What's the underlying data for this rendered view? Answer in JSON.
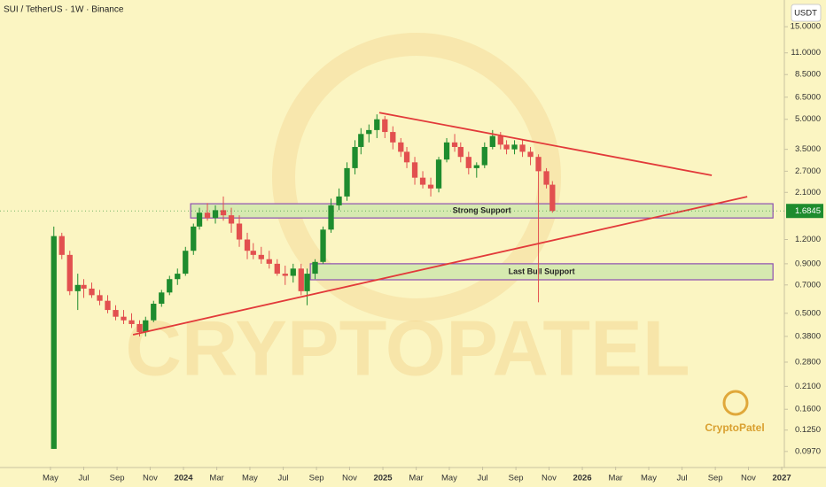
{
  "chart_data": {
    "type": "candlestick",
    "title": "SUI / TetherUS · 1W · Binance",
    "y_unit": "USDT",
    "log_scale": true,
    "grid": false,
    "up_color": "#1e8c2e",
    "down_color": "#e2504f",
    "xlim": [
      2023.08,
      2027.013
    ],
    "ylim": [
      0.081,
      20.6
    ],
    "xticks": [
      {
        "value": 2023.333,
        "label": "May"
      },
      {
        "value": 2023.5,
        "label": "Jul"
      },
      {
        "value": 2023.667,
        "label": "Sep"
      },
      {
        "value": 2023.833,
        "label": "Nov"
      },
      2024,
      {
        "value": 2024.167,
        "label": "Mar"
      },
      {
        "value": 2024.333,
        "label": "May"
      },
      {
        "value": 2024.5,
        "label": "Jul"
      },
      {
        "value": 2024.667,
        "label": "Sep"
      },
      {
        "value": 2024.833,
        "label": "Nov"
      },
      2025,
      {
        "value": 2025.167,
        "label": "Mar"
      },
      {
        "value": 2025.333,
        "label": "May"
      },
      {
        "value": 2025.5,
        "label": "Jul"
      },
      {
        "value": 2025.667,
        "label": "Sep"
      },
      {
        "value": 2025.833,
        "label": "Nov"
      },
      2026,
      {
        "value": 2026.167,
        "label": "Mar"
      },
      {
        "value": 2026.333,
        "label": "May"
      },
      {
        "value": 2026.5,
        "label": "Jul"
      },
      {
        "value": 2026.667,
        "label": "Sep"
      },
      {
        "value": 2026.833,
        "label": "Nov"
      },
      2027
    ],
    "yticks": [
      {
        "value": 15,
        "label": "15.0000"
      },
      {
        "value": 11,
        "label": "11.0000"
      },
      {
        "value": 8.5,
        "label": "8.5000"
      },
      {
        "value": 6.5,
        "label": "6.5000"
      },
      {
        "value": 5,
        "label": "5.0000"
      },
      {
        "value": 3.5,
        "label": "3.5000"
      },
      {
        "value": 2.7,
        "label": "2.7000"
      },
      {
        "value": 2.1,
        "label": "2.1000"
      },
      {
        "value": 1.2,
        "label": "1.2000"
      },
      {
        "value": 0.9,
        "label": "0.9000"
      },
      {
        "value": 0.7,
        "label": "0.7000"
      },
      {
        "value": 0.5,
        "label": "0.5000"
      },
      {
        "value": 0.38,
        "label": "0.3800"
      },
      {
        "value": 0.28,
        "label": "0.2800"
      },
      {
        "value": 0.21,
        "label": "0.2100"
      },
      {
        "value": 0.16,
        "label": "0.1600"
      },
      {
        "value": 0.125,
        "label": "0.1250"
      },
      {
        "value": 0.097,
        "label": "0.0970"
      }
    ],
    "current_price": 1.6845,
    "current_price_color": "#1e8c2e",
    "x": [
      2023.35,
      2023.39,
      2023.43,
      2023.47,
      2023.5,
      2023.54,
      2023.58,
      2023.62,
      2023.66,
      2023.7,
      2023.74,
      2023.78,
      2023.81,
      2023.85,
      2023.89,
      2023.93,
      2023.97,
      2024.01,
      2024.05,
      2024.08,
      2024.12,
      2024.16,
      2024.2,
      2024.24,
      2024.28,
      2024.32,
      2024.35,
      2024.39,
      2024.43,
      2024.47,
      2024.51,
      2024.55,
      2024.59,
      2024.62,
      2024.66,
      2024.7,
      2024.74,
      2024.78,
      2024.82,
      2024.86,
      2024.89,
      2024.93,
      2024.97,
      2025.01,
      2025.05,
      2025.09,
      2025.12,
      2025.16,
      2025.2,
      2025.24,
      2025.28,
      2025.32,
      2025.36,
      2025.39,
      2025.43,
      2025.47,
      2025.51,
      2025.55,
      2025.59,
      2025.62,
      2025.66,
      2025.7,
      2025.74,
      2025.78,
      2025.82,
      2025.85
    ],
    "open": [
      0.1,
      1.25,
      1.0,
      0.65,
      0.7,
      0.67,
      0.62,
      0.58,
      0.52,
      0.48,
      0.46,
      0.44,
      0.4,
      0.46,
      0.56,
      0.64,
      0.75,
      0.8,
      1.05,
      1.4,
      1.65,
      1.55,
      1.7,
      1.6,
      1.45,
      1.2,
      1.05,
      1.0,
      0.95,
      0.9,
      0.8,
      0.78,
      0.85,
      0.65,
      0.8,
      0.92,
      1.35,
      1.8,
      2.0,
      2.8,
      3.6,
      4.2,
      4.4,
      5.0,
      4.3,
      3.8,
      3.4,
      3.0,
      2.5,
      2.3,
      2.2,
      3.1,
      3.8,
      3.6,
      3.2,
      2.8,
      2.9,
      3.6,
      4.1,
      3.7,
      3.5,
      3.7,
      3.4,
      3.2,
      2.7,
      2.3
    ],
    "high": [
      1.4,
      1.3,
      1.05,
      0.8,
      0.75,
      0.72,
      0.66,
      0.62,
      0.55,
      0.52,
      0.5,
      0.46,
      0.48,
      0.58,
      0.66,
      0.78,
      0.85,
      1.1,
      1.45,
      1.75,
      1.85,
      1.8,
      2.0,
      1.75,
      1.6,
      1.3,
      1.15,
      1.1,
      1.05,
      0.95,
      0.88,
      0.9,
      0.9,
      0.85,
      0.95,
      1.4,
      1.95,
      2.2,
      3.0,
      3.9,
      4.5,
      4.7,
      5.3,
      5.2,
      4.6,
      4.0,
      3.6,
      3.2,
      2.7,
      2.5,
      3.2,
      4.0,
      4.2,
      3.8,
      3.4,
      3.0,
      3.8,
      4.4,
      4.3,
      3.9,
      3.9,
      3.9,
      3.6,
      3.3,
      2.8,
      2.4
    ],
    "low": [
      0.1,
      0.95,
      0.62,
      0.52,
      0.6,
      0.6,
      0.55,
      0.5,
      0.46,
      0.44,
      0.42,
      0.38,
      0.38,
      0.45,
      0.54,
      0.62,
      0.7,
      0.78,
      1.0,
      1.35,
      1.5,
      1.45,
      1.5,
      1.3,
      1.1,
      0.95,
      0.95,
      0.9,
      0.85,
      0.78,
      0.7,
      0.72,
      0.62,
      0.55,
      0.75,
      0.9,
      1.3,
      1.7,
      1.9,
      2.6,
      3.3,
      3.8,
      4.0,
      4.0,
      3.5,
      3.2,
      2.8,
      2.3,
      2.2,
      2.0,
      2.1,
      3.0,
      3.4,
      3.0,
      2.6,
      2.5,
      2.8,
      3.5,
      3.5,
      3.3,
      3.3,
      3.2,
      2.9,
      0.57,
      2.2,
      1.65
    ],
    "close": [
      1.25,
      1.0,
      0.65,
      0.7,
      0.67,
      0.62,
      0.58,
      0.52,
      0.48,
      0.46,
      0.44,
      0.4,
      0.46,
      0.56,
      0.64,
      0.75,
      0.8,
      1.05,
      1.4,
      1.65,
      1.55,
      1.7,
      1.6,
      1.45,
      1.2,
      1.05,
      1.0,
      0.95,
      0.9,
      0.8,
      0.78,
      0.85,
      0.65,
      0.8,
      0.92,
      1.35,
      1.8,
      2.0,
      2.8,
      3.6,
      4.2,
      4.4,
      5.0,
      4.3,
      3.8,
      3.4,
      3.0,
      2.5,
      2.3,
      2.2,
      3.1,
      3.8,
      3.6,
      3.2,
      2.8,
      2.9,
      3.6,
      4.1,
      3.7,
      3.5,
      3.7,
      3.4,
      3.2,
      2.7,
      2.3,
      1.6845
    ],
    "zones": [
      {
        "label": "Strong Support",
        "xlim": [
          2024.036,
          2026.956
        ],
        "ylim": [
          1.55,
          1.835
        ],
        "color": "#d6eab0",
        "border": "#8e4fb0"
      },
      {
        "label": "Last Bull Support",
        "xlim": [
          2024.636,
          2026.956
        ],
        "ylim": [
          0.744,
          0.9
        ],
        "color": "#d6eab0",
        "border": "#8e4fb0"
      }
    ],
    "trendlines": [
      {
        "x": [
          2024.982,
          2026.649
        ],
        "y": [
          5.41,
          2.57
        ],
        "color": "#e23a3a"
      },
      {
        "x": [
          2023.747,
          2026.827
        ],
        "y": [
          0.388,
          1.996
        ],
        "color": "#e23a3a"
      }
    ],
    "watermark": {
      "text": "CRYPTOPATEL",
      "logo": "CryptoPatel"
    }
  }
}
